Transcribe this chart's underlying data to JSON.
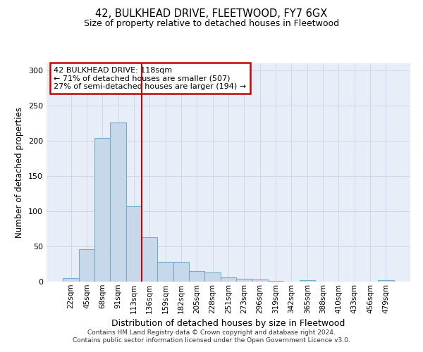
{
  "title": "42, BULKHEAD DRIVE, FLEETWOOD, FY7 6GX",
  "subtitle": "Size of property relative to detached houses in Fleetwood",
  "xlabel": "Distribution of detached houses by size in Fleetwood",
  "ylabel": "Number of detached properties",
  "bar_color": "#c8d8eb",
  "bar_edge_color": "#7aaac8",
  "categories": [
    "22sqm",
    "45sqm",
    "68sqm",
    "91sqm",
    "113sqm",
    "136sqm",
    "159sqm",
    "182sqm",
    "205sqm",
    "228sqm",
    "251sqm",
    "273sqm",
    "296sqm",
    "319sqm",
    "342sqm",
    "365sqm",
    "388sqm",
    "410sqm",
    "433sqm",
    "456sqm",
    "479sqm"
  ],
  "values": [
    5,
    46,
    204,
    226,
    107,
    63,
    28,
    28,
    15,
    13,
    6,
    4,
    3,
    1,
    0,
    2,
    0,
    0,
    0,
    0,
    2
  ],
  "annotation_line1": "42 BULKHEAD DRIVE: 118sqm",
  "annotation_line2": "← 71% of detached houses are smaller (507)",
  "annotation_line3": "27% of semi-detached houses are larger (194) →",
  "vline_bin_index": 4,
  "ylim": [
    0,
    310
  ],
  "yticks": [
    0,
    50,
    100,
    150,
    200,
    250,
    300
  ],
  "grid_color": "#d0d8e8",
  "annotation_box_color": "#ffffff",
  "annotation_box_edge": "#cc0000",
  "vline_color": "#cc0000",
  "footnote_line1": "Contains HM Land Registry data © Crown copyright and database right 2024.",
  "footnote_line2": "Contains public sector information licensed under the Open Government Licence v3.0.",
  "background_color": "#e8eef8"
}
